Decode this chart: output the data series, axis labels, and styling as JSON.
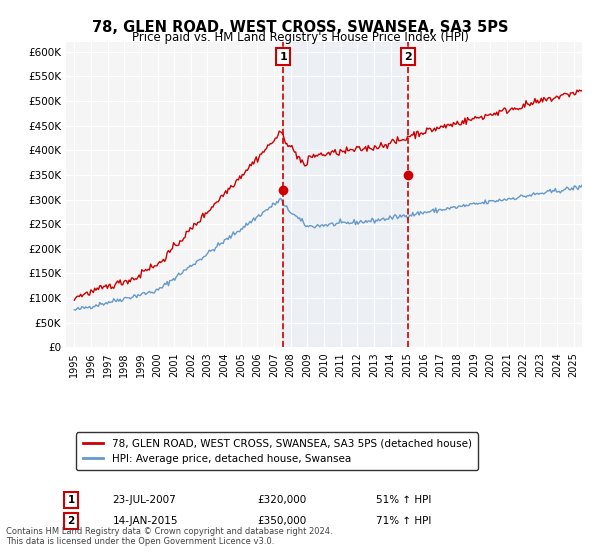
{
  "title": "78, GLEN ROAD, WEST CROSS, SWANSEA, SA3 5PS",
  "subtitle": "Price paid vs. HM Land Registry's House Price Index (HPI)",
  "ylabel_ticks": [
    "£0",
    "£50K",
    "£100K",
    "£150K",
    "£200K",
    "£250K",
    "£300K",
    "£350K",
    "£400K",
    "£450K",
    "£500K",
    "£550K",
    "£600K"
  ],
  "ylim": [
    0,
    620000
  ],
  "ytick_vals": [
    0,
    50000,
    100000,
    150000,
    200000,
    250000,
    300000,
    350000,
    400000,
    450000,
    500000,
    550000,
    600000
  ],
  "sale1_date_num": 2007.55,
  "sale1_price": 320000,
  "sale1_label": "1",
  "sale1_date_str": "23-JUL-2007",
  "sale1_pct": "51% ↑ HPI",
  "sale2_date_num": 2015.04,
  "sale2_price": 350000,
  "sale2_label": "2",
  "sale2_date_str": "14-JAN-2015",
  "sale2_pct": "71% ↑ HPI",
  "hpi_color": "#6699cc",
  "price_color": "#cc0000",
  "sale_marker_color": "#cc0000",
  "vline_color": "#cc0000",
  "shade_color": "#dce9f5",
  "legend_entry1": "78, GLEN ROAD, WEST CROSS, SWANSEA, SA3 5PS (detached house)",
  "legend_entry2": "HPI: Average price, detached house, Swansea",
  "footnote": "Contains HM Land Registry data © Crown copyright and database right 2024.\nThis data is licensed under the Open Government Licence v3.0.",
  "xlim_start": 1994.5,
  "xlim_end": 2025.5,
  "background_color": "#ffffff",
  "plot_bg_color": "#f5f5f5"
}
